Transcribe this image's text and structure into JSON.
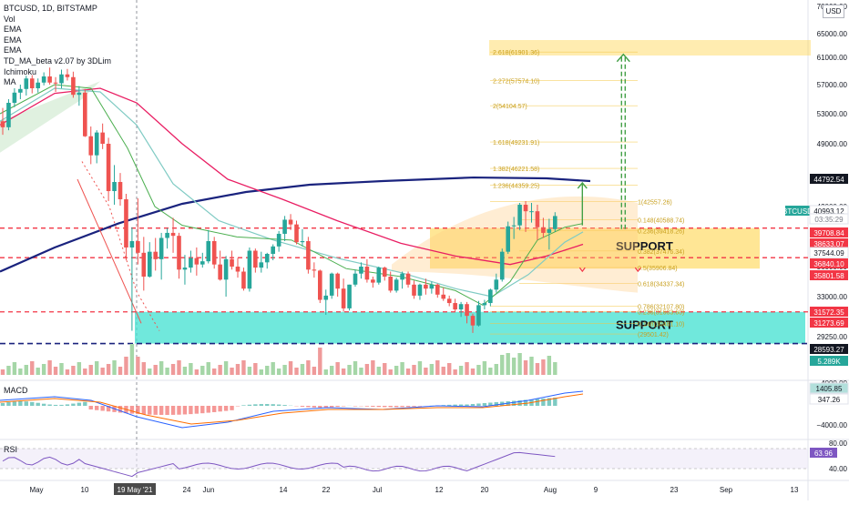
{
  "legend": {
    "symbol_line": "BTCUSD, 1D, BITSTAMP",
    "indicators": [
      "Vol",
      "EMA",
      "EMA",
      "EMA",
      "TD_MA_beta v2.07 by 3DLim",
      "Ichimoku",
      "MA"
    ]
  },
  "currency_badge": "USD",
  "price_axis": {
    "ticks": [
      "70000.00",
      "65000.00",
      "61000.00",
      "57000.00",
      "53000.00",
      "49000.00",
      "45000.00",
      "42000.00",
      "39000.00",
      "36000.00",
      "33000.00",
      "29250.00"
    ],
    "tags": [
      {
        "label": "44792.54",
        "bg": "#131722",
        "fg": "#ffffff",
        "value": 44792.54
      },
      {
        "label": "BTCUSD",
        "bg": "#26a69a",
        "fg": "#ffffff",
        "value": 40993.12
      },
      {
        "label": "40993.12",
        "bg": "#ffffff",
        "fg": "#131722",
        "value": 40993.12
      },
      {
        "label": "03:35:29",
        "bg": "#ffffff",
        "fg": "#787b86",
        "value": 40400
      },
      {
        "label": "39708.84",
        "bg": "#f23645",
        "fg": "#ffffff",
        "value": 39708.84
      },
      {
        "label": "38633.07",
        "bg": "#f23645",
        "fg": "#ffffff",
        "value": 38633.07
      },
      {
        "label": "37544.09",
        "bg": "#ffffff",
        "fg": "#131722",
        "value": 37544.09
      },
      {
        "label": "36840.10",
        "bg": "#f23645",
        "fg": "#ffffff",
        "value": 36840.1
      },
      {
        "label": "35801.58",
        "bg": "#f23645",
        "fg": "#ffffff",
        "value": 35801.58
      },
      {
        "label": "31572.35",
        "bg": "#f23645",
        "fg": "#ffffff",
        "value": 31572.35
      },
      {
        "label": "31273.69",
        "bg": "#f23645",
        "fg": "#ffffff",
        "value": 31273.69
      },
      {
        "label": "28593.27",
        "bg": "#131722",
        "fg": "#ffffff",
        "value": 28593.27
      },
      {
        "label": "5.289K",
        "bg": "#26a69a",
        "fg": "#ffffff",
        "value": 27700
      }
    ]
  },
  "fib_levels": [
    {
      "label": "2.618(61901.36)",
      "value": 61901.36
    },
    {
      "label": "2.272(57574.10)",
      "value": 57574.1
    },
    {
      "label": "2(54104.57)",
      "value": 54104.57
    },
    {
      "label": "1.618(49231.91)",
      "value": 49231.91
    },
    {
      "label": "1.382(46221.58)",
      "value": 46221.58
    },
    {
      "label": "1.236(44359.25)",
      "value": 44359.25
    },
    {
      "label": "1(42557.26)",
      "value": 42557.26
    },
    {
      "label": "0.148(40588.74)",
      "value": 40588.74
    },
    {
      "label": "0.236(39418.26)",
      "value": 39418.26
    },
    {
      "label": "0.382(37476.34)",
      "value": 37476.34
    },
    {
      "label": "0.5(35906.84)",
      "value": 35906.84
    },
    {
      "label": "0.618(34337.34)",
      "value": 34337.34
    },
    {
      "label": "0.786(32107.80)",
      "value": 32107.8
    },
    {
      "label": "0.236(31603.60)",
      "value": 31603.6
    },
    {
      "label": "0.148(30481.10)",
      "value": 30481.1
    },
    {
      "label": "(29501.42)",
      "value": 29501.42
    }
  ],
  "annotations": {
    "support_upper_label": "SUPPORT",
    "support_lower_label": "SUPPORT"
  },
  "date_axis": {
    "ticks": [
      "May",
      "10",
      "19 May '21",
      "24",
      "Jun",
      "14",
      "22",
      "Jul",
      "12",
      "20",
      "Aug",
      "9",
      "23",
      "Sep",
      "13"
    ]
  },
  "macd": {
    "title": "MACD",
    "tags": [
      {
        "label": "1405.85",
        "bg": "#b2dfdb",
        "fg": "#131722"
      },
      {
        "label": "347.26",
        "bg": "#ffffff",
        "fg": "#131722"
      }
    ],
    "ticks": [
      "4000.00",
      "−4000.00"
    ]
  },
  "rsi": {
    "title": "RSI",
    "tags": [
      {
        "label": "63.96",
        "bg": "#7e57c2",
        "fg": "#ffffff"
      }
    ],
    "ticks": [
      "80.00",
      "40.00"
    ]
  },
  "colors": {
    "up": "#26a69a",
    "down": "#ef5350",
    "support_cyan": "#40e0d0",
    "support_yellow": "#ffd54f",
    "ma_dark_blue": "#1a237e",
    "ema_red": "#e91e63",
    "ema_teal": "#80cbc4"
  },
  "chart_data": {
    "type": "candlestick",
    "symbol": "BTCUSD",
    "interval": "1D",
    "exchange": "BITSTAMP",
    "y_range": [
      27000,
      70000
    ],
    "last_price": 40993.12,
    "candles": [
      [
        52000,
        53800,
        50200,
        51200
      ],
      [
        51200,
        55000,
        50800,
        54500
      ],
      [
        54500,
        56500,
        53900,
        55900
      ],
      [
        55900,
        57000,
        55000,
        56400
      ],
      [
        56400,
        58300,
        55500,
        57900
      ],
      [
        57900,
        58400,
        55800,
        56500
      ],
      [
        56500,
        57900,
        55900,
        57300
      ],
      [
        57300,
        58800,
        56900,
        58200
      ],
      [
        58200,
        59500,
        57000,
        57300
      ],
      [
        57300,
        58100,
        56000,
        57200
      ],
      [
        57200,
        59200,
        56500,
        58500
      ],
      [
        58500,
        59300,
        57600,
        58100
      ],
      [
        58100,
        58900,
        55200,
        55600
      ],
      [
        55600,
        56800,
        54100,
        55900
      ],
      [
        55900,
        56400,
        49900,
        50000
      ],
      [
        50000,
        51300,
        46700,
        47700
      ],
      [
        47700,
        50800,
        46800,
        50500
      ],
      [
        50500,
        51700,
        48400,
        49000
      ],
      [
        49000,
        49800,
        42600,
        43700
      ],
      [
        43700,
        46600,
        42200,
        44700
      ],
      [
        44700,
        45700,
        42100,
        42800
      ],
      [
        42800,
        43400,
        36600,
        37800
      ],
      [
        37800,
        39800,
        29800,
        38400
      ],
      [
        38400,
        42900,
        36200,
        37300
      ],
      [
        37300,
        38800,
        33600,
        35000
      ],
      [
        35000,
        38300,
        34900,
        37400
      ],
      [
        37400,
        38700,
        35600,
        36700
      ],
      [
        36700,
        39200,
        34700,
        38700
      ],
      [
        38700,
        39700,
        37700,
        39200
      ],
      [
        39200,
        40800,
        37300,
        38900
      ],
      [
        38900,
        39200,
        34800,
        35700
      ],
      [
        35700,
        37100,
        34200,
        35900
      ],
      [
        35900,
        37500,
        35400,
        36800
      ],
      [
        36800,
        37800,
        35100,
        36200
      ],
      [
        36200,
        37300,
        35900,
        36500
      ],
      [
        36500,
        39500,
        36300,
        38400
      ],
      [
        38400,
        38800,
        35800,
        36200
      ],
      [
        36200,
        37500,
        34600,
        34700
      ],
      [
        34700,
        37000,
        33000,
        36700
      ],
      [
        36700,
        37500,
        35700,
        36000
      ],
      [
        36000,
        36800,
        34900,
        35500
      ],
      [
        35500,
        35900,
        33600,
        33800
      ],
      [
        33800,
        37800,
        33500,
        37500
      ],
      [
        37500,
        37700,
        35400,
        35900
      ],
      [
        35900,
        37400,
        35400,
        36400
      ],
      [
        36400,
        37300,
        35800,
        37200
      ],
      [
        37200,
        38100,
        36600,
        37900
      ],
      [
        37900,
        39400,
        37400,
        39100
      ],
      [
        39100,
        41000,
        38400,
        40600
      ],
      [
        40600,
        41200,
        39500,
        40100
      ],
      [
        40100,
        40500,
        38100,
        38300
      ],
      [
        38300,
        39600,
        37900,
        38400
      ],
      [
        38400,
        38800,
        35300,
        35700
      ],
      [
        35700,
        36400,
        34900,
        35600
      ],
      [
        35600,
        35700,
        32400,
        32700
      ],
      [
        32700,
        33700,
        31300,
        33100
      ],
      [
        33100,
        35400,
        32800,
        35300
      ],
      [
        35300,
        35400,
        33000,
        33800
      ],
      [
        33800,
        34800,
        31600,
        31900
      ],
      [
        31900,
        34200,
        31700,
        34200
      ],
      [
        34200,
        35700,
        34000,
        35300
      ],
      [
        35300,
        36400,
        34800,
        36000
      ],
      [
        36000,
        36700,
        34400,
        34700
      ],
      [
        34700,
        35000,
        33900,
        34400
      ],
      [
        34400,
        36000,
        34200,
        35900
      ],
      [
        35900,
        36000,
        34600,
        35000
      ],
      [
        35000,
        35500,
        33400,
        33600
      ],
      [
        33600,
        34900,
        33400,
        34700
      ],
      [
        34700,
        35500,
        33800,
        35300
      ],
      [
        35300,
        35500,
        33900,
        34200
      ],
      [
        34200,
        34600,
        32800,
        33100
      ],
      [
        33100,
        34300,
        32700,
        34200
      ],
      [
        34200,
        34800,
        33200,
        33800
      ],
      [
        33800,
        34500,
        33300,
        34200
      ],
      [
        34200,
        34300,
        32900,
        33200
      ],
      [
        33200,
        33900,
        32600,
        32800
      ],
      [
        32800,
        33100,
        32100,
        32400
      ],
      [
        32400,
        32800,
        31600,
        31800
      ],
      [
        31800,
        32500,
        31100,
        32300
      ],
      [
        32300,
        32500,
        30500,
        31200
      ],
      [
        31200,
        31400,
        29600,
        30300
      ],
      [
        30300,
        32600,
        30200,
        32200
      ],
      [
        32200,
        32700,
        31800,
        32400
      ],
      [
        32400,
        33800,
        32100,
        33700
      ],
      [
        33700,
        35300,
        33400,
        34700
      ],
      [
        34700,
        37700,
        34500,
        37400
      ],
      [
        37400,
        40400,
        37200,
        39900
      ],
      [
        39900,
        40900,
        38600,
        40000
      ],
      [
        40000,
        42400,
        39500,
        42200
      ],
      [
        42200,
        42600,
        39300,
        41500
      ],
      [
        41500,
        42400,
        40300,
        41500
      ],
      [
        41500,
        42200,
        38500,
        39800
      ],
      [
        39800,
        40800,
        38700,
        39200
      ],
      [
        39200,
        40700,
        37600,
        39600
      ],
      [
        39600,
        41400,
        39300,
        40993.12
      ]
    ]
  }
}
